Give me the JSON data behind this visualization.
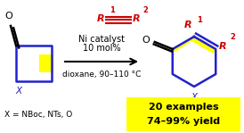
{
  "bg_color": "#ffffff",
  "fig_width": 2.74,
  "fig_height": 1.49,
  "dpi": 100,
  "reactant_color": "#2222cc",
  "reactant_highlight": "#ffff00",
  "alkyne_color": "#cc0000",
  "product_color": "#2222cc",
  "product_highlight": "#ffff00",
  "black": "#000000",
  "red": "#cc0000",
  "x_color": "#2222cc",
  "arrow_color": "#000000",
  "cond_above1": "10 mol%",
  "cond_above2": "Ni catalyst",
  "cond_below": "dioxane, 90–110 °C",
  "x_def": "X = NBoc, NTs, O",
  "examples": "20 examples",
  "yield": "74–99% yield",
  "yellow_box": "#ffff00"
}
